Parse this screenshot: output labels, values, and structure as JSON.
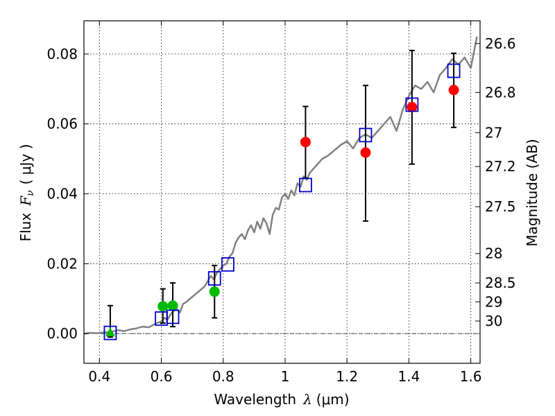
{
  "chart_data": {
    "type": "scatter",
    "xlabel": "Wavelength",
    "xlabel_symbol": "λ",
    "xlabel_unit": "(μm)",
    "ylabel": "Flux",
    "ylabel_symbol": "F",
    "ylabel_sub": "ν",
    "ylabel_unit": "( μJy )",
    "y2label": "Magnitude (AB)",
    "xlim": [
      0.35,
      1.63
    ],
    "ylim": [
      -0.0085,
      0.0895
    ],
    "grid": true,
    "x_ticks": [
      0.4,
      0.6,
      0.8,
      1.0,
      1.2,
      1.4,
      1.6
    ],
    "x_tick_labels": [
      "0.4",
      "0.6",
      "0.8",
      "1",
      "1.2",
      "1.4",
      "1.6"
    ],
    "y_ticks": [
      0.0,
      0.02,
      0.04,
      0.06,
      0.08
    ],
    "y_tick_labels": [
      "0.00",
      "0.02",
      "0.04",
      "0.06",
      "0.08"
    ],
    "y2_ticks": [
      {
        "label": "26.6",
        "flux": 0.083
      },
      {
        "label": "26.8",
        "flux": 0.069
      },
      {
        "label": "27",
        "flux": 0.0575
      },
      {
        "label": "27.2",
        "flux": 0.0478
      },
      {
        "label": "27.5",
        "flux": 0.0363
      },
      {
        "label": "28",
        "flux": 0.0229
      },
      {
        "label": "28.5",
        "flux": 0.0145
      },
      {
        "label": "29",
        "flux": 0.0091
      },
      {
        "label": "30",
        "flux": 0.0036
      }
    ],
    "zero_line": 0.0,
    "colors": {
      "model": "#808080",
      "red_points": "#ff0000",
      "green_points": "#00bb00",
      "squares": "#0000cc",
      "errorbars": "#000000",
      "grid": "#000000"
    },
    "series": [
      {
        "kind": "model_line",
        "x": [
          0.35,
          0.37,
          0.39,
          0.41,
          0.42,
          0.43,
          0.44,
          0.46,
          0.48,
          0.5,
          0.52,
          0.54,
          0.56,
          0.58,
          0.6,
          0.61,
          0.62,
          0.63,
          0.64,
          0.65,
          0.66,
          0.67,
          0.68,
          0.7,
          0.72,
          0.74,
          0.75,
          0.76,
          0.77,
          0.78,
          0.79,
          0.8,
          0.81,
          0.82,
          0.83,
          0.84,
          0.85,
          0.86,
          0.87,
          0.88,
          0.89,
          0.9,
          0.91,
          0.92,
          0.93,
          0.94,
          0.95,
          0.96,
          0.97,
          0.98,
          0.99,
          1.0,
          1.01,
          1.02,
          1.03,
          1.04,
          1.05,
          1.06,
          1.07,
          1.08,
          1.09,
          1.1,
          1.12,
          1.14,
          1.16,
          1.18,
          1.2,
          1.22,
          1.24,
          1.26,
          1.28,
          1.3,
          1.32,
          1.34,
          1.36,
          1.38,
          1.4,
          1.42,
          1.44,
          1.46,
          1.48,
          1.5,
          1.52,
          1.54,
          1.56,
          1.58,
          1.6,
          1.62
        ],
        "y": [
          0.0,
          0.0002,
          0.0001,
          0.0003,
          0.0004,
          0.0003,
          0.0005,
          0.001,
          0.0007,
          0.0012,
          0.0015,
          0.002,
          0.0018,
          0.0028,
          0.0035,
          0.0045,
          0.004,
          0.0055,
          0.0065,
          0.007,
          0.006,
          0.0085,
          0.009,
          0.0105,
          0.012,
          0.0135,
          0.015,
          0.0165,
          0.0155,
          0.0175,
          0.0185,
          0.0195,
          0.02,
          0.022,
          0.023,
          0.026,
          0.0275,
          0.0285,
          0.027,
          0.0295,
          0.031,
          0.029,
          0.032,
          0.03,
          0.033,
          0.0315,
          0.0285,
          0.034,
          0.036,
          0.0355,
          0.039,
          0.04,
          0.0385,
          0.041,
          0.0395,
          0.043,
          0.042,
          0.045,
          0.044,
          0.046,
          0.047,
          0.048,
          0.05,
          0.051,
          0.0525,
          0.054,
          0.055,
          0.053,
          0.056,
          0.057,
          0.056,
          0.058,
          0.06,
          0.062,
          0.058,
          0.064,
          0.068,
          0.071,
          0.07,
          0.072,
          0.069,
          0.074,
          0.076,
          0.0785,
          0.077,
          0.079,
          0.076,
          0.085
        ]
      },
      {
        "kind": "errorbars",
        "points": [
          {
            "x": 0.435,
            "lo": -0.001,
            "hi": 0.008
          },
          {
            "x": 0.605,
            "lo": 0.003,
            "hi": 0.0128
          },
          {
            "x": 0.637,
            "lo": 0.002,
            "hi": 0.0145
          },
          {
            "x": 0.772,
            "lo": 0.0045,
            "hi": 0.0195
          },
          {
            "x": 1.066,
            "lo": 0.0445,
            "hi": 0.065
          },
          {
            "x": 1.26,
            "lo": 0.0322,
            "hi": 0.071
          },
          {
            "x": 1.41,
            "lo": 0.0485,
            "hi": 0.081
          },
          {
            "x": 1.545,
            "lo": 0.059,
            "hi": 0.0802
          }
        ]
      },
      {
        "kind": "green_circles",
        "x": [
          0.605,
          0.637,
          0.772
        ],
        "y": [
          0.0078,
          0.008,
          0.012
        ]
      },
      {
        "kind": "green_triangle",
        "x": [
          0.435
        ],
        "y": [
          0.0002
        ]
      },
      {
        "kind": "red_circles",
        "x": [
          1.066,
          1.26,
          1.41,
          1.545
        ],
        "y": [
          0.0548,
          0.0518,
          0.0648,
          0.0697
        ]
      },
      {
        "kind": "blue_squares",
        "x": [
          0.435,
          0.6,
          0.637,
          0.772,
          0.815,
          1.066,
          1.26,
          1.41,
          1.545
        ],
        "y": [
          0.0002,
          0.0043,
          0.0048,
          0.0158,
          0.0198,
          0.0425,
          0.0568,
          0.0655,
          0.0752
        ]
      }
    ]
  }
}
